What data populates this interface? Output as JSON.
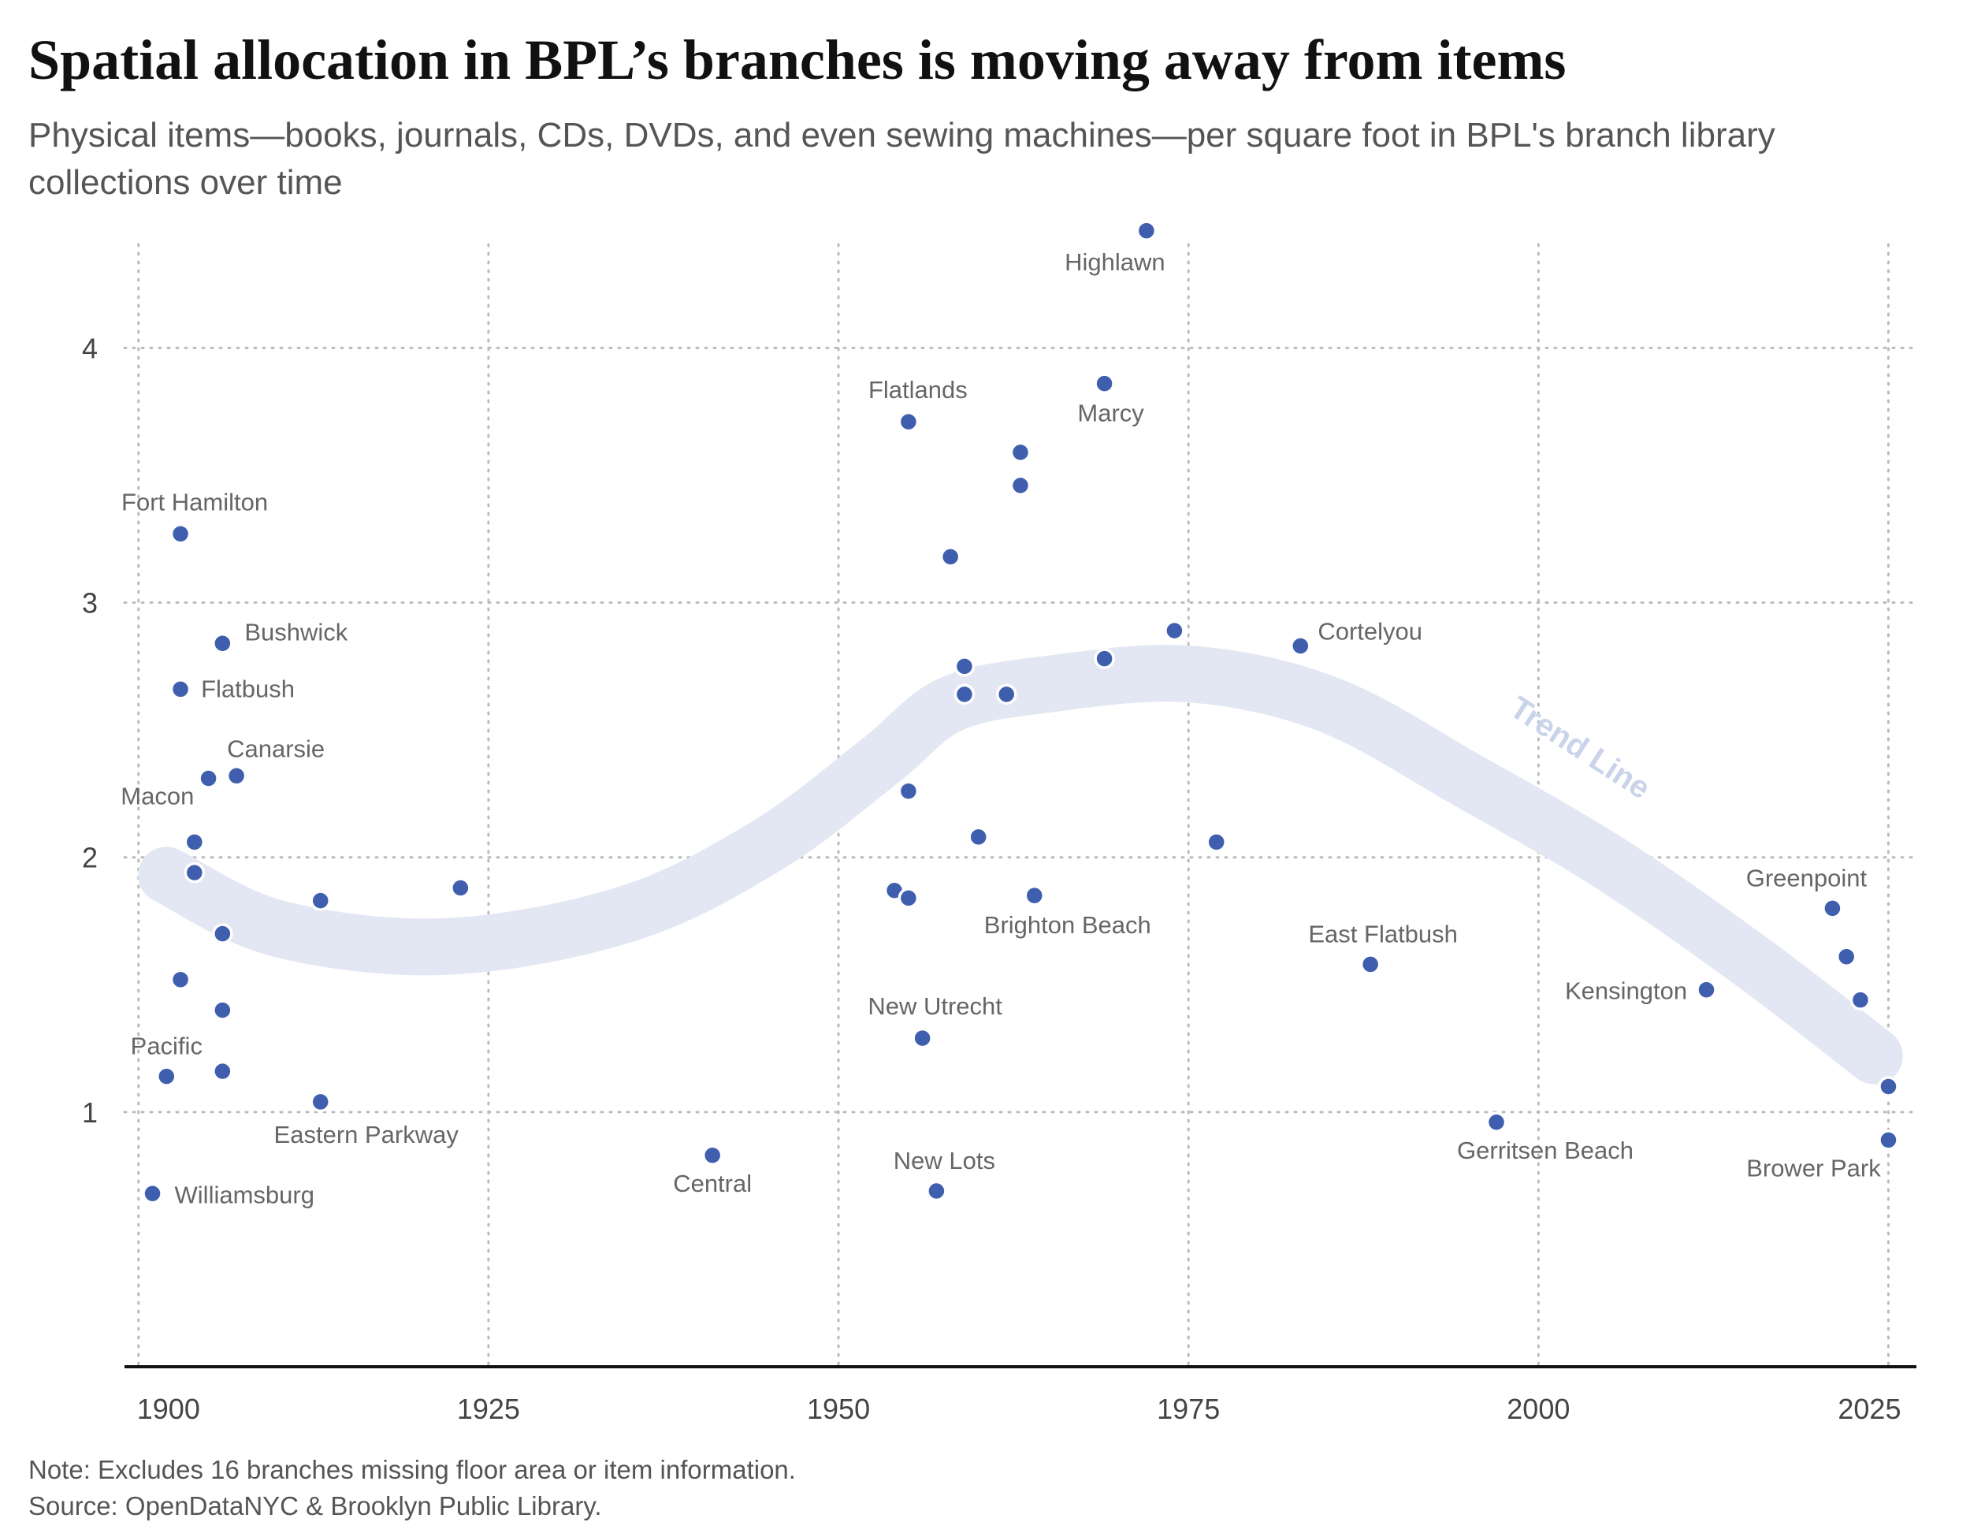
{
  "title": "Spatial allocation in BPL’s branches is moving away from items",
  "subtitle": "Physical items—books, journals, CDs, DVDs, and even sewing machines—per square foot in BPL's branch library collections over time",
  "note": "Note: Excludes 16 branches missing floor area or item information.",
  "source": "Source: OpenDataNYC & Brooklyn Public Library.",
  "colors": {
    "point": "#3f5fae",
    "trend": "#e3e7f3",
    "trend_label": "#c9d3ea",
    "grid": "#bbbbbb",
    "label": "#666666"
  },
  "chart_data": {
    "type": "scatter",
    "title": "",
    "xlabel": "",
    "ylabel": "",
    "xlim": [
      1899,
      2027
    ],
    "ylim": [
      0,
      4.45
    ],
    "x_ticks": [
      1900,
      1925,
      1950,
      1975,
      2000,
      2025
    ],
    "y_ticks": [
      1,
      2,
      3,
      4
    ],
    "grid": true,
    "trend_label": "Trend Line",
    "trend_line": [
      {
        "x": 1902,
        "y": 1.93
      },
      {
        "x": 1910,
        "y": 1.72
      },
      {
        "x": 1922,
        "y": 1.65
      },
      {
        "x": 1935,
        "y": 1.78
      },
      {
        "x": 1945,
        "y": 2.05
      },
      {
        "x": 1953,
        "y": 2.38
      },
      {
        "x": 1958,
        "y": 2.6
      },
      {
        "x": 1965,
        "y": 2.68
      },
      {
        "x": 1975,
        "y": 2.72
      },
      {
        "x": 1985,
        "y": 2.6
      },
      {
        "x": 1995,
        "y": 2.3
      },
      {
        "x": 2005,
        "y": 1.98
      },
      {
        "x": 2015,
        "y": 1.6
      },
      {
        "x": 2024,
        "y": 1.22
      }
    ],
    "points": [
      {
        "x": 1972,
        "y": 4.46,
        "label": "Highlawn"
      },
      {
        "x": 1969,
        "y": 3.86,
        "label": "Marcy"
      },
      {
        "x": 1955,
        "y": 3.71,
        "label": "Flatlands"
      },
      {
        "x": 1963,
        "y": 3.59,
        "label": ""
      },
      {
        "x": 1963,
        "y": 3.46,
        "label": ""
      },
      {
        "x": 1903,
        "y": 3.27,
        "label": "Fort Hamilton"
      },
      {
        "x": 1958,
        "y": 3.18,
        "label": ""
      },
      {
        "x": 1974,
        "y": 2.89,
        "label": ""
      },
      {
        "x": 1906,
        "y": 2.84,
        "label": "Bushwick"
      },
      {
        "x": 1983,
        "y": 2.83,
        "label": "Cortelyou"
      },
      {
        "x": 1969,
        "y": 2.78,
        "label": ""
      },
      {
        "x": 1959,
        "y": 2.75,
        "label": ""
      },
      {
        "x": 1903,
        "y": 2.66,
        "label": "Flatbush"
      },
      {
        "x": 1959,
        "y": 2.64,
        "label": ""
      },
      {
        "x": 1962,
        "y": 2.64,
        "label": ""
      },
      {
        "x": 1907,
        "y": 2.32,
        "label": "Canarsie"
      },
      {
        "x": 1905,
        "y": 2.31,
        "label": ""
      },
      {
        "x": 1955,
        "y": 2.26,
        "label": ""
      },
      {
        "x": 1960,
        "y": 2.08,
        "label": ""
      },
      {
        "x": 1904,
        "y": 2.06,
        "label": "Macon"
      },
      {
        "x": 1977,
        "y": 2.06,
        "label": ""
      },
      {
        "x": 1904,
        "y": 1.94,
        "label": ""
      },
      {
        "x": 1923,
        "y": 1.88,
        "label": ""
      },
      {
        "x": 1954,
        "y": 1.87,
        "label": ""
      },
      {
        "x": 1964,
        "y": 1.85,
        "label": "Brighton Beach"
      },
      {
        "x": 1955,
        "y": 1.84,
        "label": ""
      },
      {
        "x": 1913,
        "y": 1.83,
        "label": ""
      },
      {
        "x": 2021,
        "y": 1.8,
        "label": "Greenpoint"
      },
      {
        "x": 1906,
        "y": 1.7,
        "label": ""
      },
      {
        "x": 2022,
        "y": 1.61,
        "label": ""
      },
      {
        "x": 1988,
        "y": 1.58,
        "label": "East Flatbush"
      },
      {
        "x": 1903,
        "y": 1.52,
        "label": ""
      },
      {
        "x": 2012,
        "y": 1.48,
        "label": "Kensington"
      },
      {
        "x": 2023,
        "y": 1.44,
        "label": ""
      },
      {
        "x": 1906,
        "y": 1.4,
        "label": ""
      },
      {
        "x": 1956,
        "y": 1.29,
        "label": "New Utrecht"
      },
      {
        "x": 1906,
        "y": 1.16,
        "label": ""
      },
      {
        "x": 1902,
        "y": 1.14,
        "label": "Pacific"
      },
      {
        "x": 2025,
        "y": 1.1,
        "label": ""
      },
      {
        "x": 1913,
        "y": 1.04,
        "label": "Eastern Parkway"
      },
      {
        "x": 1997,
        "y": 0.96,
        "label": "Gerritsen Beach"
      },
      {
        "x": 2025,
        "y": 0.89,
        "label": "Brower Park"
      },
      {
        "x": 1941,
        "y": 0.83,
        "label": "Central"
      },
      {
        "x": 1957,
        "y": 0.69,
        "label": "New Lots"
      },
      {
        "x": 1901,
        "y": 0.68,
        "label": "Williamsburg"
      }
    ]
  }
}
